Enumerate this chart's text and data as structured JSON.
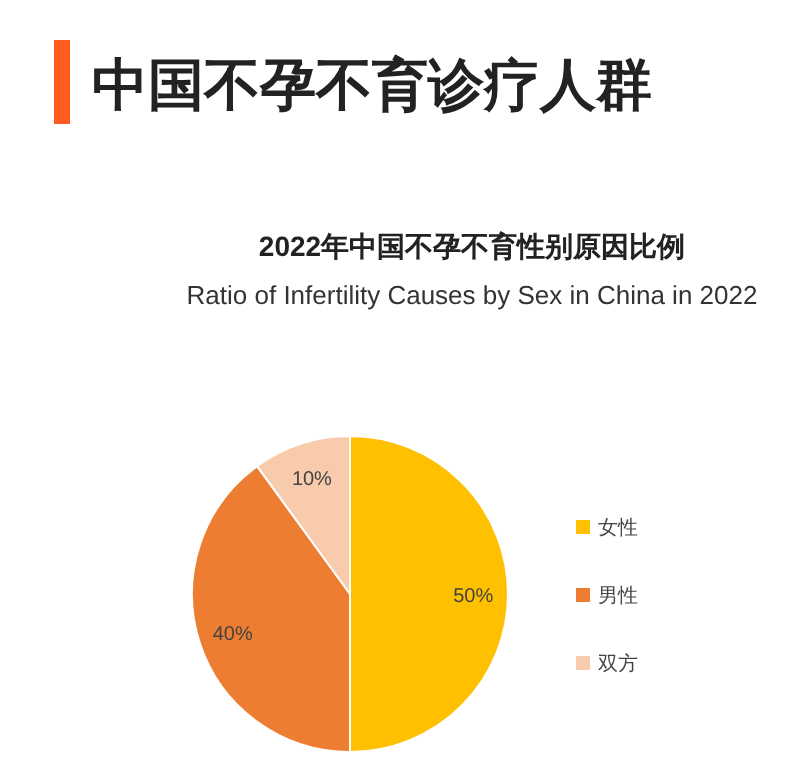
{
  "chart_data": {
    "type": "pie",
    "title": "2022年中国不孕不育性别原因比例",
    "subtitle": "Ratio of Infertility Causes by Sex in China in 2022",
    "annotations": [
      "中国不孕不育诊疗人群"
    ],
    "categories": [
      "女性",
      "男性",
      "双方"
    ],
    "values": [
      50,
      40,
      10
    ],
    "value_labels": [
      "50%",
      "40%",
      "10%"
    ],
    "colors": [
      "#ffc000",
      "#ed7d31",
      "#f8cbad"
    ],
    "legend": "right"
  }
}
